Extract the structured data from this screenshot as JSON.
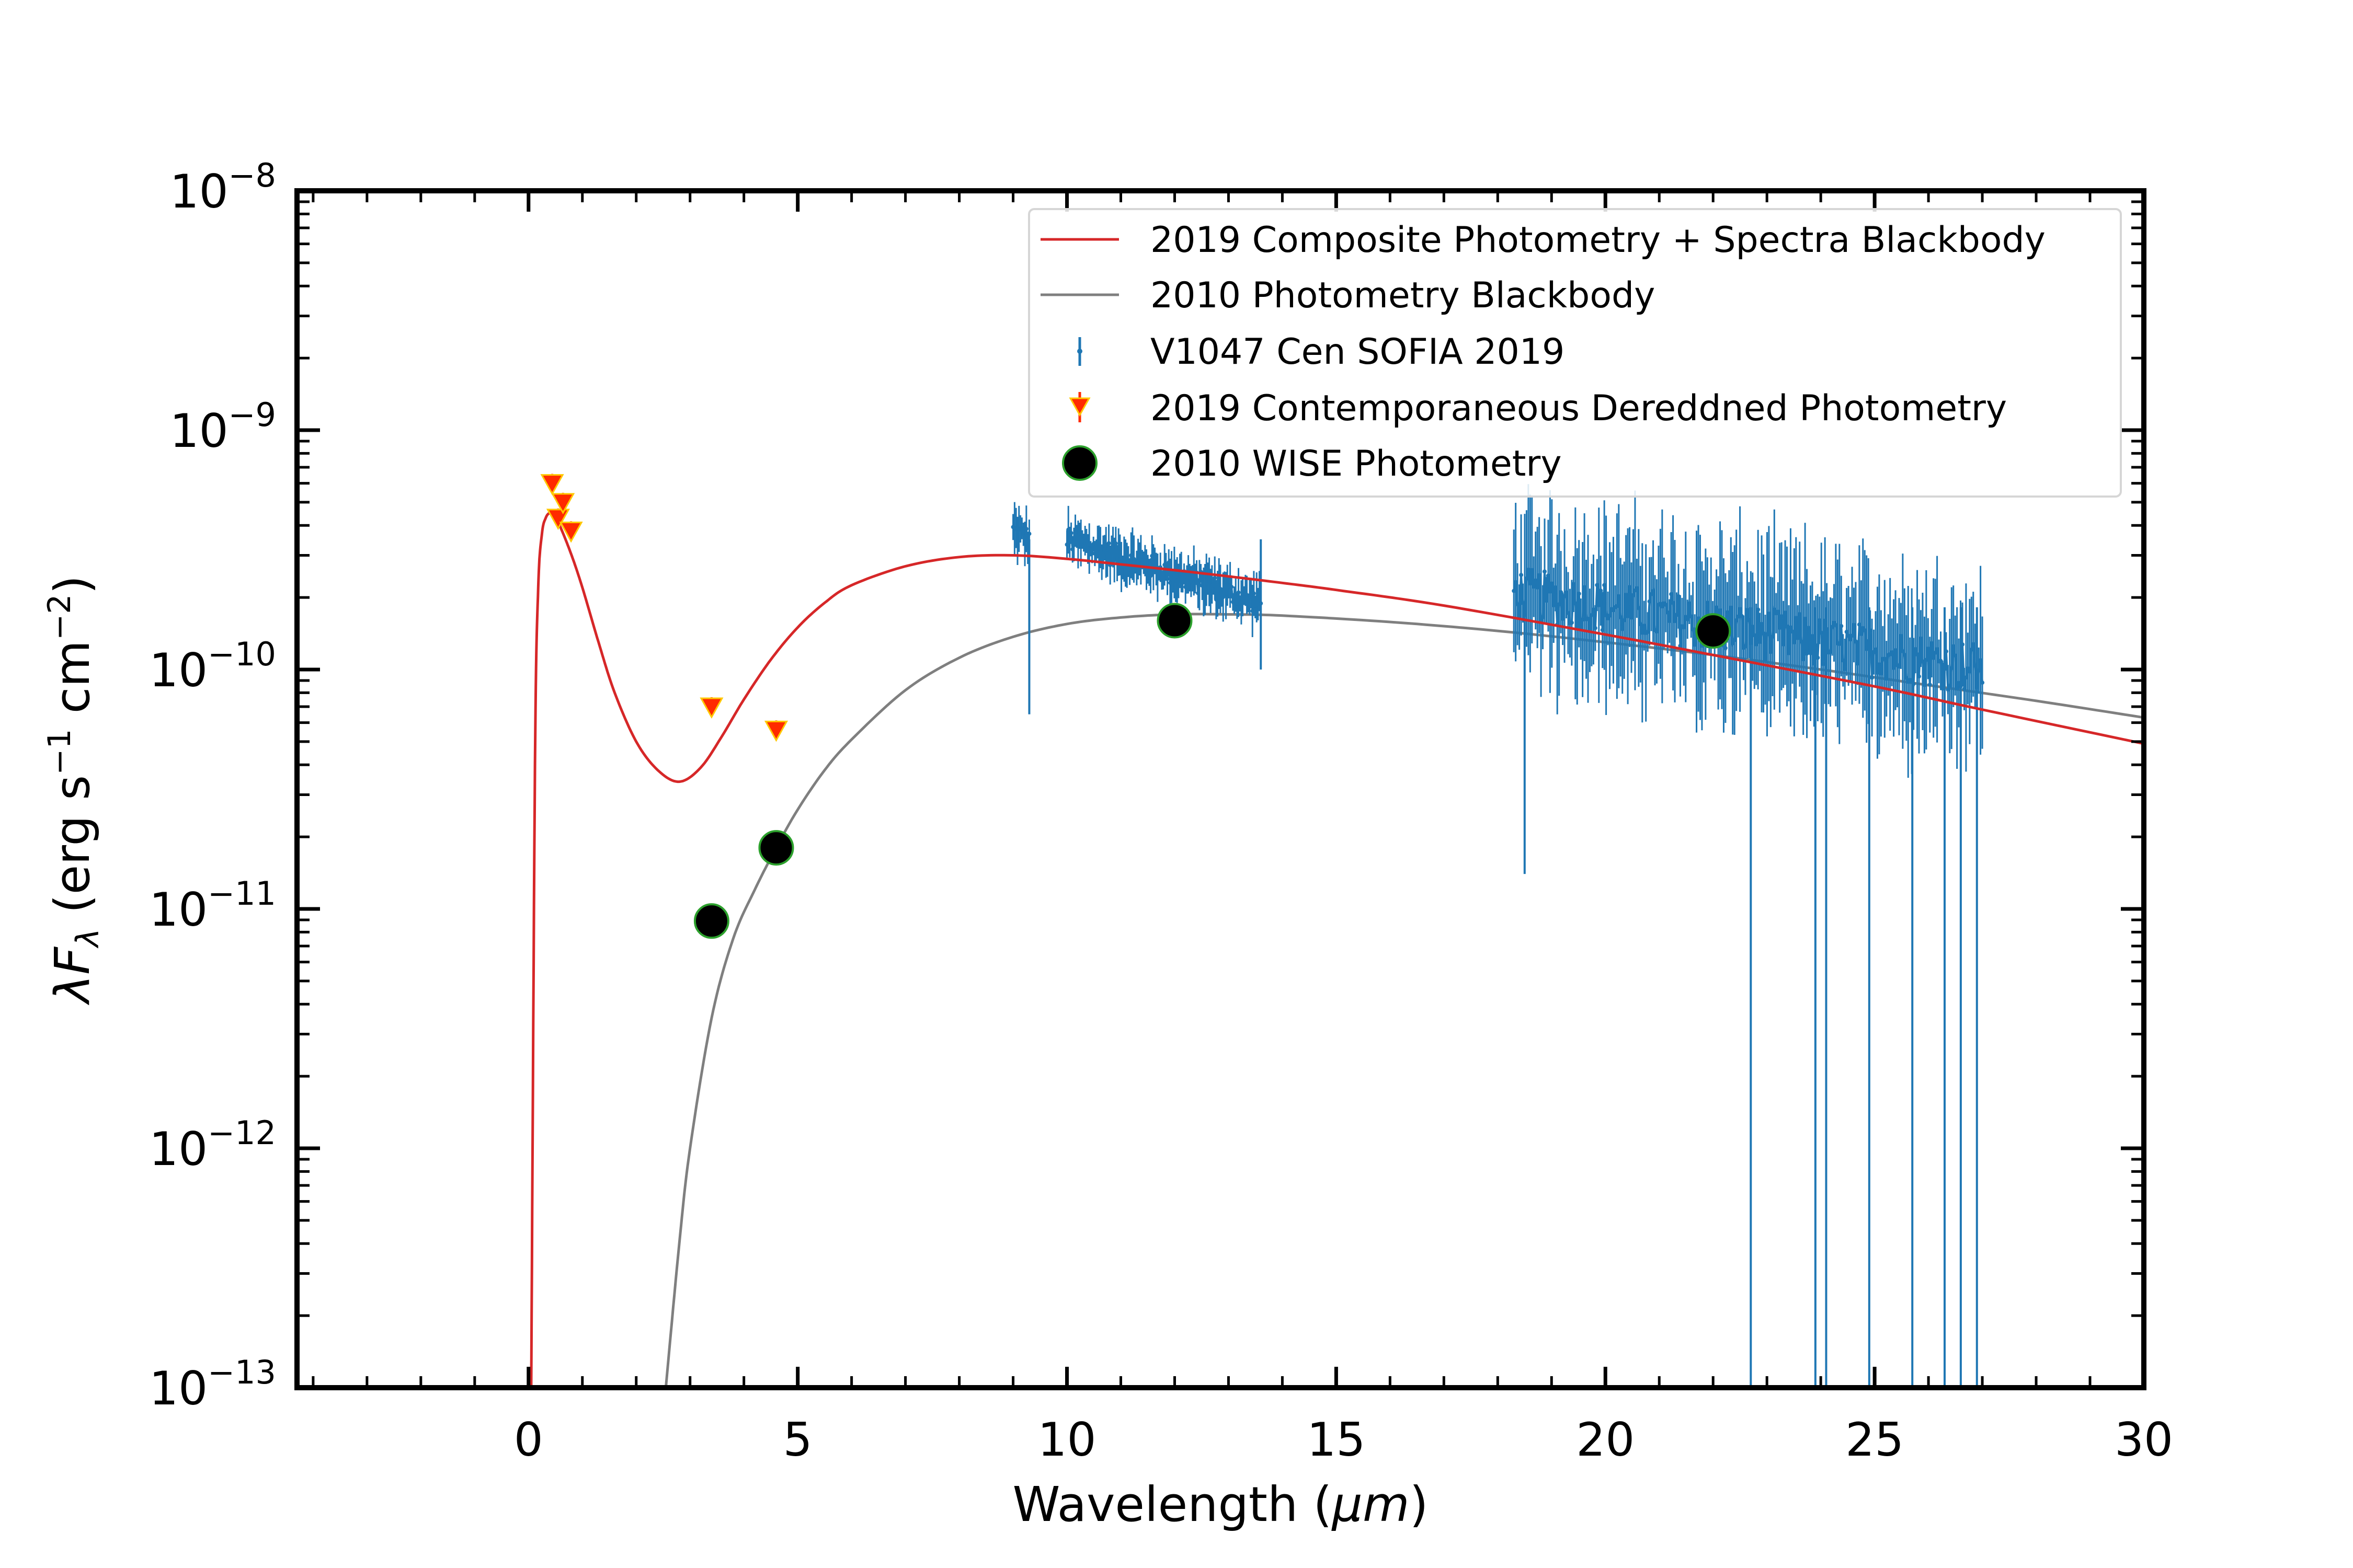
{
  "chart_data": {
    "type": "scatter",
    "title": "",
    "xlabel_text": "Wavelength (",
    "xlabel_unit": "μm",
    "xlabel_close": ")",
    "ylabel_sym": "λF",
    "ylabel_sub": "λ",
    "ylabel_text": " (erg s",
    "ylabel_exp1": "−1",
    "ylabel_mid": " cm",
    "ylabel_exp2": "−2",
    "ylabel_close": ")",
    "xlim": [
      -4.3,
      30
    ],
    "ylim_log10": [
      -13,
      -8
    ],
    "x_ticks": [
      0,
      5,
      10,
      15,
      20,
      25,
      30
    ],
    "x_tick_labels": [
      "0",
      "5",
      "10",
      "15",
      "20",
      "25",
      "30"
    ],
    "y_ticks_log10": [
      -13,
      -12,
      -11,
      -10,
      -9,
      -8
    ],
    "y_tick_base": "10",
    "y_tick_exponents": [
      "−13",
      "−12",
      "−11",
      "−10",
      "−9",
      "−8"
    ],
    "series": [
      {
        "name": "2019 Composite Photometry + Spectra Blackbody",
        "kind": "line",
        "color": "#d62728",
        "x": [
          0.05,
          0.12,
          0.18,
          0.25,
          0.32,
          0.4,
          0.5,
          0.6,
          0.8,
          1.0,
          1.3,
          1.6,
          2.0,
          2.4,
          2.8,
          3.2,
          3.6,
          4.0,
          4.5,
          5.0,
          5.5,
          6.0,
          7.0,
          8.0,
          9.0,
          10.0,
          11.0,
          12.0,
          13.0,
          14.0,
          15.0,
          17.0,
          20.0,
          22.0,
          25.0,
          27.0,
          30.0
        ],
        "y": [
          1e-13,
          4e-11,
          2.2e-10,
          3.7e-10,
          4.3e-10,
          4.5e-10,
          4.3e-10,
          3.9e-10,
          3e-10,
          2.2e-10,
          1.3e-10,
          8e-11,
          5e-11,
          3.8e-11,
          3.4e-11,
          3.9e-11,
          5.3e-11,
          7.5e-11,
          1.1e-10,
          1.5e-10,
          1.9e-10,
          2.25e-10,
          2.7e-10,
          2.95e-10,
          3e-10,
          2.9e-10,
          2.75e-10,
          2.6e-10,
          2.45e-10,
          2.3e-10,
          2.15e-10,
          1.85e-10,
          1.4e-10,
          1.15e-10,
          8.5e-11,
          6.8e-11,
          4.9e-11
        ]
      },
      {
        "name": "2010 Photometry Blackbody",
        "kind": "line",
        "color": "#7f7f7f",
        "x": [
          2.55,
          2.8,
          3.0,
          3.4,
          3.8,
          4.2,
          4.6,
          5.0,
          5.5,
          6.0,
          7.0,
          8.0,
          9.0,
          10.0,
          11.0,
          12.0,
          13.0,
          14.0,
          16.0,
          18.0,
          20.0,
          22.0,
          24.0,
          26.0,
          28.0,
          30.0
        ],
        "y": [
          1e-13,
          4e-13,
          1e-12,
          3.5e-12,
          7.5e-12,
          1.2e-11,
          1.8e-11,
          2.6e-11,
          3.8e-11,
          5.1e-11,
          8.2e-11,
          1.12e-10,
          1.37e-10,
          1.55e-10,
          1.65e-10,
          1.7e-10,
          1.7e-10,
          1.68e-10,
          1.58e-10,
          1.45e-10,
          1.3e-10,
          1.15e-10,
          1e-10,
          8.6e-11,
          7.4e-11,
          6.3e-11
        ]
      },
      {
        "name": "V1047 Cen SOFIA 2019",
        "kind": "errorbar-spectrum",
        "color": "#1f77b4",
        "segments": [
          {
            "x_start": 9.0,
            "x_end": 9.3,
            "flux_start": 3.8e-10,
            "flux_end": 3.5e-10,
            "points": 12
          },
          {
            "x_start": 10.0,
            "x_end": 13.6,
            "flux_start": 3.5e-10,
            "flux_end": 1.9e-10,
            "points": 140
          },
          {
            "x_start": 18.3,
            "x_end": 27.0,
            "flux_start": 2.1e-10,
            "flux_end": 1e-10,
            "points": 260
          }
        ],
        "notable_dips": [
          {
            "x": 9.3,
            "y": 6.5e-11
          },
          {
            "x": 13.6,
            "y": 1e-10
          },
          {
            "x": 18.5,
            "y": 1.4e-11
          },
          {
            "x": 22.7,
            "y": 1e-13
          },
          {
            "x": 23.9,
            "y": 1e-13
          },
          {
            "x": 24.1,
            "y": 1e-13
          },
          {
            "x": 24.9,
            "y": 1e-13
          },
          {
            "x": 25.7,
            "y": 1e-13
          },
          {
            "x": 26.3,
            "y": 1e-13
          },
          {
            "x": 26.6,
            "y": 1e-13
          },
          {
            "x": 26.9,
            "y": 1e-13
          }
        ]
      },
      {
        "name": "2019 Contemporaneous Dereddned Photometry",
        "kind": "scatter-triangle-down",
        "color": "#ff2a00",
        "edge_color": "#ffc800",
        "x": [
          0.44,
          0.55,
          0.64,
          0.79,
          3.4,
          4.6
        ],
        "y": [
          6e-10,
          4.3e-10,
          5e-10,
          3.8e-10,
          7e-11,
          5.6e-11
        ]
      },
      {
        "name": "2010 WISE Photometry",
        "kind": "scatter-circle",
        "color": "#000000",
        "edge_color": "#2ca02c",
        "x": [
          3.4,
          4.6,
          12.0,
          22.0
        ],
        "y": [
          8.9e-12,
          1.8e-11,
          1.6e-10,
          1.45e-10
        ]
      }
    ],
    "legend": {
      "position": "upper-right",
      "entries": [
        "2019 Composite Photometry + Spectra Blackbody",
        "2010 Photometry Blackbody",
        "V1047 Cen SOFIA 2019",
        "2019 Contemporaneous Dereddned Photometry",
        "2010 WISE Photometry"
      ]
    }
  }
}
